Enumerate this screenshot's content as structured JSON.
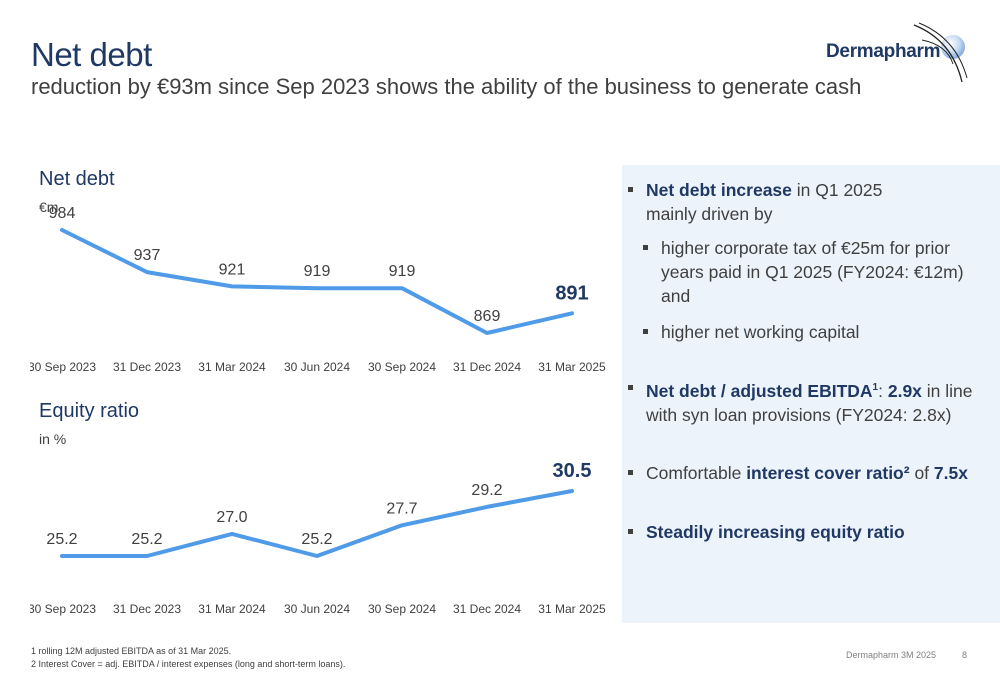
{
  "header": {
    "title": "Net debt",
    "subtitle": "reduction by €93m since Sep 2023 shows the ability of the business to generate cash",
    "logo_text": "Dermapharm"
  },
  "chart_data": [
    {
      "type": "line",
      "title": "Net debt",
      "unit": "€m",
      "categories": [
        "30 Sep 2023",
        "31 Dec 2023",
        "31 Mar 2024",
        "30 Jun 2024",
        "30 Sep 2024",
        "31 Dec 2024",
        "31 Mar 2025"
      ],
      "series": [
        {
          "values": [
            984,
            937,
            921,
            919,
            919,
            869,
            891
          ]
        }
      ],
      "data_labels": [
        "984",
        "937",
        "921",
        "919",
        "919",
        "869",
        "891"
      ],
      "highlight_last": true,
      "color": "#4f9be8",
      "grid": false
    },
    {
      "type": "line",
      "title": "Equity ratio",
      "unit": "in %",
      "categories": [
        "30 Sep 2023",
        "31 Dec 2023",
        "31 Mar 2024",
        "30 Jun 2024",
        "30 Sep 2024",
        "31 Dec 2024",
        "31 Mar 2025"
      ],
      "series": [
        {
          "values": [
            25.2,
            25.2,
            27.0,
            25.2,
            27.7,
            29.2,
            30.5
          ]
        }
      ],
      "data_labels": [
        "25.2",
        "25.2",
        "27.0",
        "25.2",
        "27.7",
        "29.2",
        "30.5"
      ],
      "highlight_last": true,
      "color": "#4f9be8",
      "grid": false
    }
  ],
  "panel": {
    "b1_bold": "Net debt increase",
    "b1_rest_line1": " in Q1 2025",
    "b1_line2": "mainly driven by",
    "s1_line1": "higher corporate tax of €25m for prior",
    "s1_line2": "years paid in Q1 2025 (FY2024: €12m)",
    "s1_line3": "and",
    "s2": "higher net working capital",
    "b2_bold": "Net debt / adjusted EBITDA",
    "b2_sup": "1",
    "b2_colon": ": ",
    "b2_val": "2.9x",
    "b2_rest_line1": " in line",
    "b2_line2": "with syn loan provisions (FY2024: 2.8x)",
    "b3_pre": "Comfortable ",
    "b3_bold": "interest cover ratio²",
    "b3_mid": " of ",
    "b3_val": "7.5x",
    "b4_bold": "Steadily increasing equity ratio"
  },
  "footer": {
    "note1": "1  rolling 12M adjusted EBITDA as of 31 Mar 2025.",
    "note2": "2  Interest Cover = adj. EBITDA / interest expenses (long and short-term loans).",
    "source": "Dermapharm 3M 2025",
    "page": "8"
  }
}
